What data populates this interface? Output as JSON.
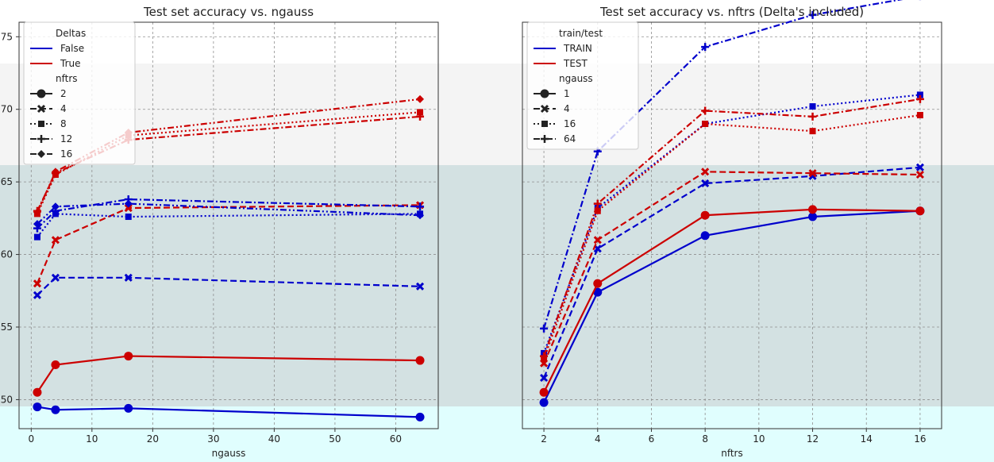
{
  "chart_data": [
    {
      "type": "line",
      "title": "Test set accuracy vs. ngauss",
      "xlabel": "ngauss",
      "ylabel": "",
      "xlim": [
        -2,
        67
      ],
      "ylim": [
        48,
        76
      ],
      "x_ticks": [
        0,
        10,
        20,
        30,
        40,
        50,
        60
      ],
      "y_ticks": [
        50,
        55,
        60,
        65,
        70,
        75
      ],
      "grid": true,
      "legend_position": "top-left",
      "legend": {
        "hue_title": "Deltas",
        "hue_entries": [
          {
            "label": "False",
            "color": "#0000cc"
          },
          {
            "label": "True",
            "color": "#cc0000"
          }
        ],
        "style_title": "nftrs",
        "style_entries": [
          {
            "label": "2",
            "marker": "circle",
            "dash": "solid"
          },
          {
            "label": "4",
            "marker": "x",
            "dash": "dashed"
          },
          {
            "label": "8",
            "marker": "square",
            "dash": "dotted"
          },
          {
            "label": "12",
            "marker": "plus",
            "dash": "dashdot"
          },
          {
            "label": "16",
            "marker": "diamond",
            "dash": "dashdotdot"
          }
        ]
      },
      "series": [
        {
          "color": "#0000cc",
          "marker": "circle",
          "dash": "solid",
          "x": [
            1,
            4,
            16,
            64
          ],
          "y": [
            49.5,
            49.3,
            49.4,
            48.8
          ]
        },
        {
          "color": "#cc0000",
          "marker": "circle",
          "dash": "solid",
          "x": [
            1,
            4,
            16,
            64
          ],
          "y": [
            50.5,
            52.4,
            53.0,
            52.7
          ]
        },
        {
          "color": "#0000cc",
          "marker": "x",
          "dash": "dashed",
          "x": [
            1,
            4,
            16,
            64
          ],
          "y": [
            57.2,
            58.4,
            58.4,
            57.8
          ]
        },
        {
          "color": "#cc0000",
          "marker": "x",
          "dash": "dashed",
          "x": [
            1,
            4,
            16,
            64
          ],
          "y": [
            58.0,
            61.0,
            63.2,
            63.4
          ]
        },
        {
          "color": "#0000cc",
          "marker": "square",
          "dash": "dotted",
          "x": [
            1,
            4,
            16,
            64
          ],
          "y": [
            61.2,
            62.8,
            62.6,
            62.8
          ]
        },
        {
          "color": "#cc0000",
          "marker": "square",
          "dash": "dotted",
          "x": [
            1,
            4,
            16,
            64
          ],
          "y": [
            62.8,
            65.5,
            68.2,
            69.8
          ]
        },
        {
          "color": "#0000cc",
          "marker": "plus",
          "dash": "dashdot",
          "x": [
            1,
            4,
            16,
            64
          ],
          "y": [
            61.8,
            63.0,
            63.8,
            63.3
          ]
        },
        {
          "color": "#cc0000",
          "marker": "plus",
          "dash": "dashdot",
          "x": [
            1,
            4,
            16,
            64
          ],
          "y": [
            63.0,
            65.6,
            67.9,
            69.5
          ]
        },
        {
          "color": "#0000cc",
          "marker": "diamond",
          "dash": "dashdotdot",
          "x": [
            1,
            4,
            16,
            64
          ],
          "y": [
            62.1,
            63.3,
            63.5,
            62.7
          ]
        },
        {
          "color": "#cc0000",
          "marker": "diamond",
          "dash": "dashdotdot",
          "x": [
            1,
            4,
            16,
            64
          ],
          "y": [
            62.9,
            65.7,
            68.4,
            70.7
          ]
        }
      ]
    },
    {
      "type": "line",
      "title": "Test set accuracy vs. nftrs (Delta's included)",
      "xlabel": "nftrs",
      "ylabel": "",
      "xlim": [
        1.2,
        16.8
      ],
      "ylim": [
        48,
        76
      ],
      "x_ticks": [
        2,
        4,
        6,
        8,
        10,
        12,
        14,
        16
      ],
      "grid": true,
      "legend_position": "top-left",
      "legend": {
        "hue_title": "train/test",
        "hue_entries": [
          {
            "label": "TRAIN",
            "color": "#0000cc"
          },
          {
            "label": "TEST",
            "color": "#cc0000"
          }
        ],
        "style_title": "ngauss",
        "style_entries": [
          {
            "label": "1",
            "marker": "circle",
            "dash": "solid"
          },
          {
            "label": "4",
            "marker": "x",
            "dash": "dashed"
          },
          {
            "label": "16",
            "marker": "square",
            "dash": "dotted"
          },
          {
            "label": "64",
            "marker": "plus",
            "dash": "dashdot"
          }
        ]
      },
      "series": [
        {
          "color": "#0000cc",
          "marker": "circle",
          "dash": "solid",
          "x": [
            2,
            4,
            8,
            12,
            16
          ],
          "y": [
            49.8,
            57.4,
            61.3,
            62.6,
            63.0
          ]
        },
        {
          "color": "#cc0000",
          "marker": "circle",
          "dash": "solid",
          "x": [
            2,
            4,
            8,
            12,
            16
          ],
          "y": [
            50.5,
            58.0,
            62.7,
            63.1,
            63.0
          ]
        },
        {
          "color": "#0000cc",
          "marker": "x",
          "dash": "dashed",
          "x": [
            2,
            4,
            8,
            12,
            16
          ],
          "y": [
            51.5,
            60.4,
            64.9,
            65.4,
            66.0
          ]
        },
        {
          "color": "#cc0000",
          "marker": "x",
          "dash": "dashed",
          "x": [
            2,
            4,
            8,
            12,
            16
          ],
          "y": [
            52.5,
            61.0,
            65.7,
            65.6,
            65.5
          ]
        },
        {
          "color": "#0000cc",
          "marker": "square",
          "dash": "dotted",
          "x": [
            2,
            4,
            8,
            12,
            16
          ],
          "y": [
            53.2,
            63.2,
            69.0,
            70.2,
            71.0
          ]
        },
        {
          "color": "#cc0000",
          "marker": "square",
          "dash": "dotted",
          "x": [
            2,
            4,
            8,
            12,
            16
          ],
          "y": [
            52.8,
            63.0,
            69.0,
            68.5,
            69.6
          ]
        },
        {
          "color": "#0000cc",
          "marker": "plus",
          "dash": "dashdot",
          "x": [
            2,
            4,
            8,
            12,
            16
          ],
          "y": [
            54.9,
            67.1,
            74.3,
            76.5,
            77.8
          ]
        },
        {
          "color": "#cc0000",
          "marker": "plus",
          "dash": "dashdot",
          "x": [
            2,
            4,
            8,
            12,
            16
          ],
          "y": [
            53.0,
            63.5,
            69.9,
            69.5,
            70.7
          ]
        }
      ]
    }
  ]
}
